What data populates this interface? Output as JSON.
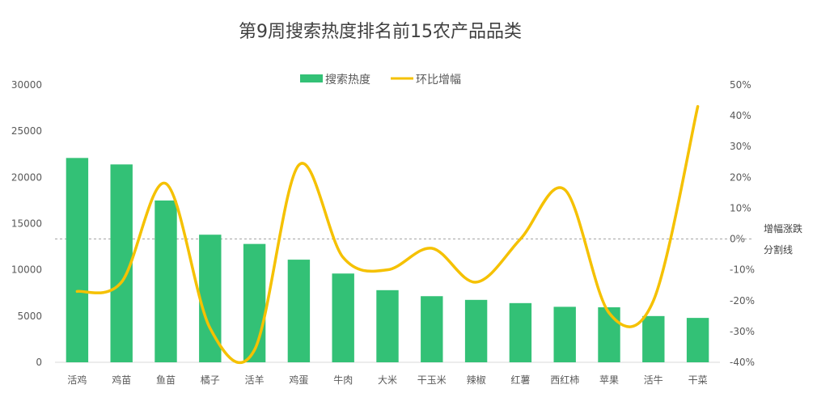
{
  "chart_data": {
    "type": "bar",
    "title": "第9周搜索热度排名前15农产品品类",
    "categories": [
      "活鸡",
      "鸡苗",
      "鱼苗",
      "橘子",
      "活羊",
      "鸡蛋",
      "牛肉",
      "大米",
      "干玉米",
      "辣椒",
      "红薯",
      "西红柿",
      "苹果",
      "活牛",
      "干菜"
    ],
    "series": [
      {
        "name": "搜索热度",
        "type": "bar",
        "axis": "left",
        "color": "#33c176",
        "values": [
          22100,
          21400,
          17500,
          13800,
          12800,
          11100,
          9600,
          7800,
          7150,
          6750,
          6400,
          6000,
          5950,
          5000,
          4800
        ]
      },
      {
        "name": "环比增幅",
        "type": "line",
        "axis": "right",
        "color": "#f5c100",
        "values": [
          -17,
          -14,
          18,
          -29,
          -36,
          24,
          -6,
          -10,
          -3,
          -14,
          0,
          16,
          -24,
          -20,
          43
        ]
      }
    ],
    "left_axis": {
      "min": 0,
      "max": 30000,
      "ticks": [
        "0",
        "5000",
        "10000",
        "15000",
        "20000",
        "25000",
        "30000"
      ]
    },
    "right_axis": {
      "min": -40,
      "max": 50,
      "ticks": [
        "-40%",
        "-30%",
        "-20%",
        "-10%",
        "0%",
        "10%",
        "20%",
        "30%",
        "40%",
        "50%"
      ]
    },
    "zero_line_annotation": [
      "增幅涨跌",
      "分割线"
    ],
    "legend": {
      "placement": "top"
    },
    "grid": false
  }
}
